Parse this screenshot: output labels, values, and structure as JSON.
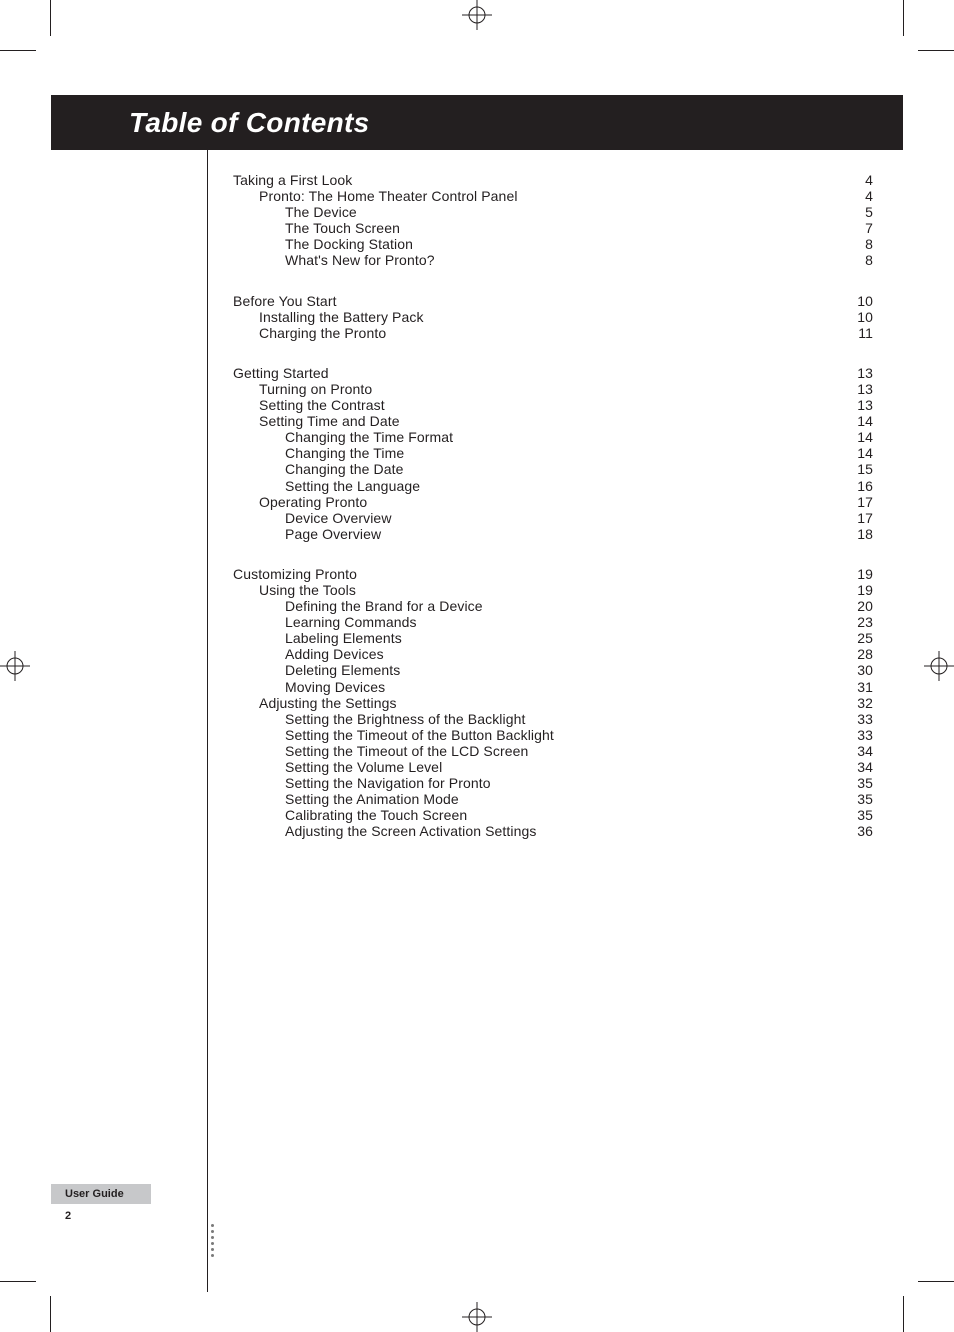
{
  "header": {
    "title": "Table of Contents"
  },
  "footer": {
    "badge": "User Guide",
    "page": "2"
  },
  "toc": [
    {
      "rows": [
        {
          "lvl": 0,
          "label": "Taking a First Look",
          "pg": "4"
        },
        {
          "lvl": 1,
          "label": "Pronto: The Home Theater Control Panel",
          "pg": "4"
        },
        {
          "lvl": 2,
          "label": "The Device",
          "pg": "5"
        },
        {
          "lvl": 2,
          "label": "The Touch Screen",
          "pg": "7"
        },
        {
          "lvl": 2,
          "label": "The Docking Station",
          "pg": "8"
        },
        {
          "lvl": 2,
          "label": "What's New for Pronto?",
          "pg": "8"
        }
      ]
    },
    {
      "rows": [
        {
          "lvl": 0,
          "label": "Before You Start",
          "pg": "10"
        },
        {
          "lvl": 1,
          "label": "Installing the Battery Pack",
          "pg": "10"
        },
        {
          "lvl": 1,
          "label": "Charging the Pronto",
          "pg": "11"
        }
      ]
    },
    {
      "rows": [
        {
          "lvl": 0,
          "label": "Getting Started",
          "pg": "13"
        },
        {
          "lvl": 1,
          "label": "Turning on Pronto",
          "pg": "13"
        },
        {
          "lvl": 1,
          "label": "Setting the Contrast",
          "pg": "13"
        },
        {
          "lvl": 1,
          "label": "Setting Time and Date",
          "pg": "14"
        },
        {
          "lvl": 2,
          "label": "Changing the Time Format",
          "pg": "14"
        },
        {
          "lvl": 2,
          "label": "Changing the Time",
          "pg": "14"
        },
        {
          "lvl": 2,
          "label": "Changing the Date",
          "pg": "15"
        },
        {
          "lvl": 2,
          "label": "Setting the Language",
          "pg": "16"
        },
        {
          "lvl": 1,
          "label": "Operating Pronto",
          "pg": "17"
        },
        {
          "lvl": 2,
          "label": "Device Overview",
          "pg": "17"
        },
        {
          "lvl": 2,
          "label": "Page Overview",
          "pg": "18"
        }
      ]
    },
    {
      "rows": [
        {
          "lvl": 0,
          "label": "Customizing Pronto",
          "pg": "19"
        },
        {
          "lvl": 1,
          "label": "Using the Tools",
          "pg": "19"
        },
        {
          "lvl": 2,
          "label": "Defining the Brand for a Device",
          "pg": "20"
        },
        {
          "lvl": 2,
          "label": "Learning Commands",
          "pg": "23"
        },
        {
          "lvl": 2,
          "label": "Labeling Elements",
          "pg": "25"
        },
        {
          "lvl": 2,
          "label": "Adding Devices",
          "pg": "28"
        },
        {
          "lvl": 2,
          "label": "Deleting Elements",
          "pg": "30"
        },
        {
          "lvl": 2,
          "label": "Moving Devices",
          "pg": "31"
        },
        {
          "lvl": 1,
          "label": "Adjusting the Settings",
          "pg": "32"
        },
        {
          "lvl": 2,
          "label": "Setting the Brightness of the Backlight",
          "pg": "33"
        },
        {
          "lvl": 2,
          "label": "Setting the Timeout of the Button Backlight",
          "pg": "33"
        },
        {
          "lvl": 2,
          "label": "Setting the Timeout of the LCD Screen",
          "pg": "34"
        },
        {
          "lvl": 2,
          "label": "Setting the Volume Level",
          "pg": "34"
        },
        {
          "lvl": 2,
          "label": "Setting the Navigation for Pronto",
          "pg": "35"
        },
        {
          "lvl": 2,
          "label": "Setting the Animation Mode",
          "pg": "35"
        },
        {
          "lvl": 2,
          "label": "Calibrating the Touch Screen",
          "pg": "35"
        },
        {
          "lvl": 2,
          "label": "Adjusting the Screen Activation Settings",
          "pg": "36"
        }
      ]
    }
  ]
}
